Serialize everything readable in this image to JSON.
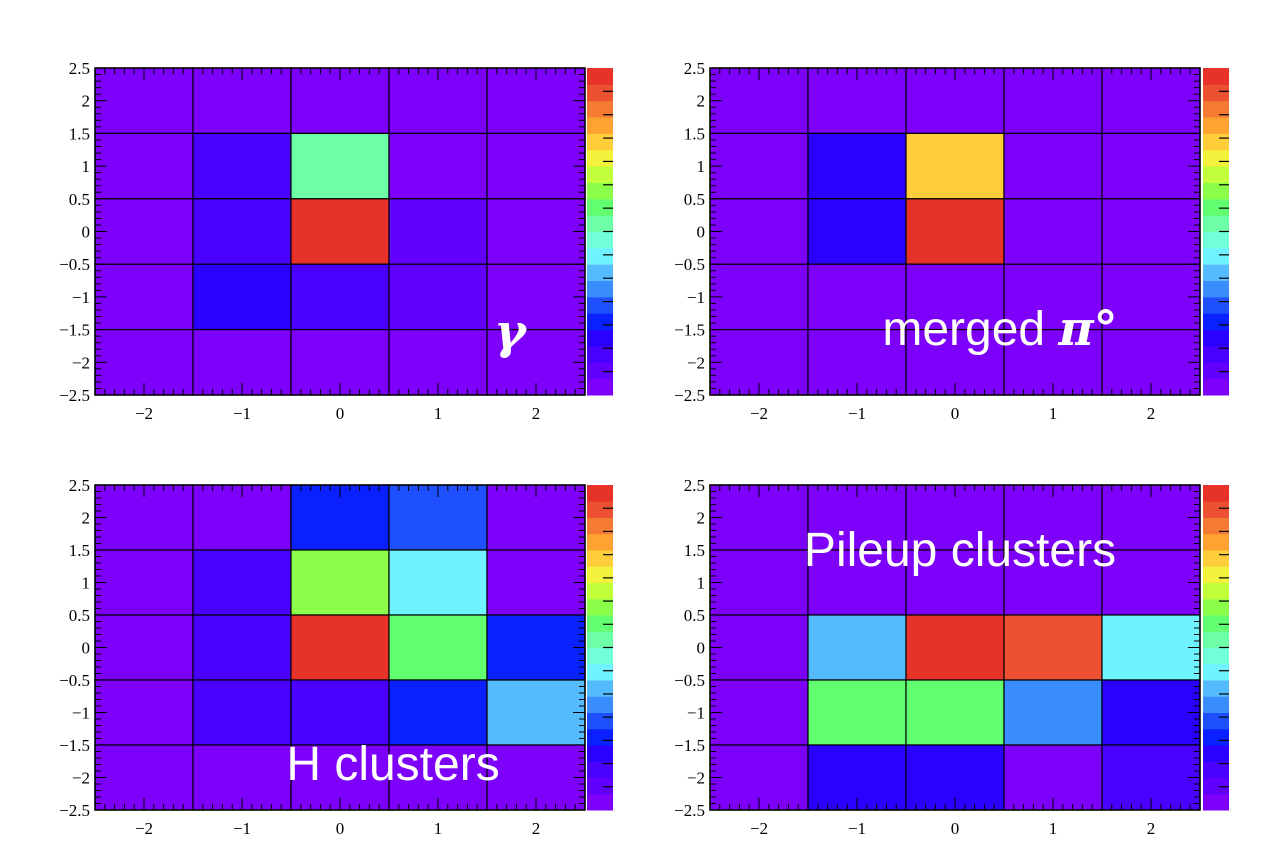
{
  "chart_data": [
    {
      "type": "heatmap",
      "label": "γ",
      "x": [
        -2,
        -1,
        0,
        1,
        2
      ],
      "y": [
        2,
        1,
        0,
        -1,
        -2
      ],
      "xlim": [
        -2.5,
        2.5
      ],
      "ylim": [
        -2.5,
        2.5
      ],
      "xticks": [
        "−2",
        "−1",
        "0",
        "1",
        "2"
      ],
      "yticks": [
        "2.5",
        "2",
        "1.5",
        "1",
        "0.5",
        "0",
        "−0.5",
        "−1",
        "−1.5",
        "−2",
        "−2.5"
      ],
      "values": [
        [
          0.02,
          0.02,
          0.02,
          0.02,
          0.02
        ],
        [
          0.02,
          0.1,
          0.5,
          0.03,
          0.02
        ],
        [
          0.02,
          0.1,
          0.96,
          0.08,
          0.02
        ],
        [
          0.02,
          0.15,
          0.1,
          0.08,
          0.02
        ],
        [
          0.02,
          0.02,
          0.02,
          0.02,
          0.02
        ]
      ],
      "colormap": [
        "#7d00fb",
        "#6200ff",
        "#4a00ff",
        "#2a00ff",
        "#0a20ff",
        "#1e50ff",
        "#3a8dff",
        "#55bbff",
        "#6ef3ff",
        "#72ffd8",
        "#6cffa8",
        "#62ff70",
        "#8cff4a",
        "#c2ff3a",
        "#f2f23c",
        "#ffcd3a",
        "#ffa232",
        "#f57a32",
        "#ee5032",
        "#e63228"
      ],
      "grid": true,
      "colorbar": true
    },
    {
      "type": "heatmap",
      "label": "merged π°",
      "x": [
        -2,
        -1,
        0,
        1,
        2
      ],
      "y": [
        2,
        1,
        0,
        -1,
        -2
      ],
      "xlim": [
        -2.5,
        2.5
      ],
      "ylim": [
        -2.5,
        2.5
      ],
      "xticks": [
        "−2",
        "−1",
        "0",
        "1",
        "2"
      ],
      "yticks": [
        "2.5",
        "2",
        "1.5",
        "1",
        "0.5",
        "0",
        "−0.5",
        "−1",
        "−1.5",
        "−2",
        "−2.5"
      ],
      "values": [
        [
          0.02,
          0.02,
          0.02,
          0.02,
          0.02
        ],
        [
          0.02,
          0.18,
          0.75,
          0.02,
          0.02
        ],
        [
          0.02,
          0.18,
          0.96,
          0.02,
          0.02
        ],
        [
          0.02,
          0.02,
          0.02,
          0.02,
          0.02
        ],
        [
          0.02,
          0.02,
          0.02,
          0.02,
          0.02
        ]
      ],
      "colormap": [
        "#7d00fb",
        "#6200ff",
        "#4a00ff",
        "#2a00ff",
        "#0a20ff",
        "#1e50ff",
        "#3a8dff",
        "#55bbff",
        "#6ef3ff",
        "#72ffd8",
        "#6cffa8",
        "#62ff70",
        "#8cff4a",
        "#c2ff3a",
        "#f2f23c",
        "#ffcd3a",
        "#ffa232",
        "#f57a32",
        "#ee5032",
        "#e63228"
      ],
      "grid": true,
      "colorbar": true
    },
    {
      "type": "heatmap",
      "label": "H clusters",
      "x": [
        -2,
        -1,
        0,
        1,
        2
      ],
      "y": [
        2,
        1,
        0,
        -1,
        -2
      ],
      "xlim": [
        -2.5,
        2.5
      ],
      "ylim": [
        -2.5,
        2.5
      ],
      "xticks": [
        "−2",
        "−1",
        "0",
        "1",
        "2"
      ],
      "yticks": [
        "2.5",
        "2",
        "1.5",
        "1",
        "0.5",
        "0",
        "−0.5",
        "−1",
        "−1.5",
        "−2",
        "−2.5"
      ],
      "values": [
        [
          0.02,
          0.04,
          0.2,
          0.25,
          0.04
        ],
        [
          0.02,
          0.1,
          0.62,
          0.42,
          0.04
        ],
        [
          0.02,
          0.1,
          0.96,
          0.55,
          0.2
        ],
        [
          0.02,
          0.1,
          0.12,
          0.2,
          0.35
        ],
        [
          0.02,
          0.02,
          0.02,
          0.02,
          0.02
        ]
      ],
      "colormap": [
        "#7d00fb",
        "#6200ff",
        "#4a00ff",
        "#2a00ff",
        "#0a20ff",
        "#1e50ff",
        "#3a8dff",
        "#55bbff",
        "#6ef3ff",
        "#72ffd8",
        "#6cffa8",
        "#62ff70",
        "#8cff4a",
        "#c2ff3a",
        "#f2f23c",
        "#ffcd3a",
        "#ffa232",
        "#f57a32",
        "#ee5032",
        "#e63228"
      ],
      "grid": true,
      "colorbar": true
    },
    {
      "type": "heatmap",
      "label": "Pileup clusters",
      "x": [
        -2,
        -1,
        0,
        1,
        2
      ],
      "y": [
        2,
        1,
        0,
        -1,
        -2
      ],
      "xlim": [
        -2.5,
        2.5
      ],
      "ylim": [
        -2.5,
        2.5
      ],
      "xticks": [
        "−2",
        "−1",
        "0",
        "1",
        "2"
      ],
      "yticks": [
        "2.5",
        "2",
        "1.5",
        "1",
        "0.5",
        "0",
        "−0.5",
        "−1",
        "−1.5",
        "−2",
        "−2.5"
      ],
      "values": [
        [
          0.02,
          0.02,
          0.02,
          0.02,
          0.02
        ],
        [
          0.02,
          0.02,
          0.02,
          0.02,
          0.02
        ],
        [
          0.02,
          0.35,
          0.96,
          0.92,
          0.42
        ],
        [
          0.02,
          0.58,
          0.55,
          0.3,
          0.18
        ],
        [
          0.02,
          0.18,
          0.15,
          0.04,
          0.12
        ]
      ],
      "colormap": [
        "#7d00fb",
        "#6200ff",
        "#4a00ff",
        "#2a00ff",
        "#0a20ff",
        "#1e50ff",
        "#3a8dff",
        "#55bbff",
        "#6ef3ff",
        "#72ffd8",
        "#6cffa8",
        "#62ff70",
        "#8cff4a",
        "#c2ff3a",
        "#f2f23c",
        "#ffcd3a",
        "#ffa232",
        "#f57a32",
        "#ee5032",
        "#e63228"
      ],
      "grid": true,
      "colorbar": true
    }
  ]
}
